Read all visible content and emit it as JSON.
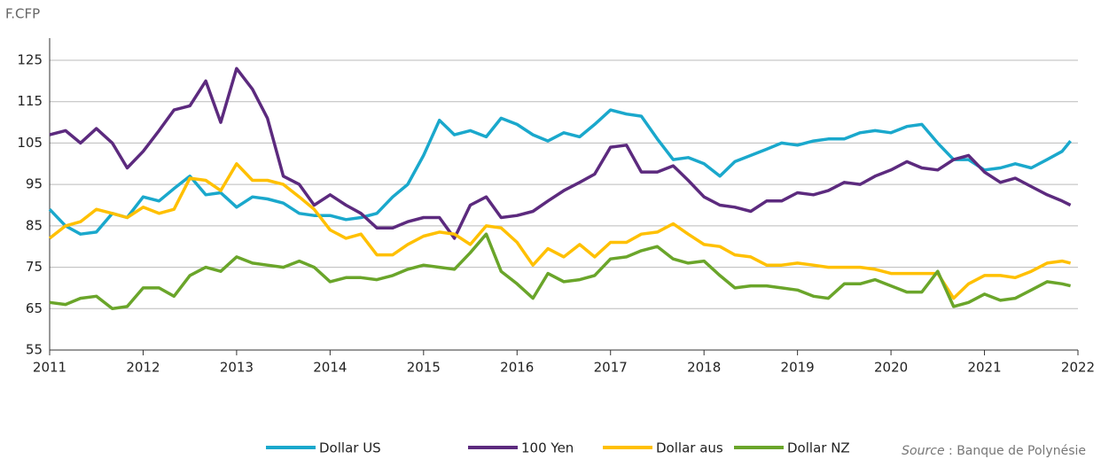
{
  "chart_data": {
    "type": "line",
    "y_label": "F.CFP",
    "x": [
      2011.0,
      2011.17,
      2011.33,
      2011.5,
      2011.67,
      2011.83,
      2012.0,
      2012.17,
      2012.33,
      2012.5,
      2012.67,
      2012.83,
      2013.0,
      2013.17,
      2013.33,
      2013.5,
      2013.67,
      2013.83,
      2014.0,
      2014.17,
      2014.33,
      2014.5,
      2014.67,
      2014.83,
      2015.0,
      2015.17,
      2015.33,
      2015.5,
      2015.67,
      2015.83,
      2016.0,
      2016.17,
      2016.33,
      2016.5,
      2016.67,
      2016.83,
      2017.0,
      2017.17,
      2017.33,
      2017.5,
      2017.67,
      2017.83,
      2018.0,
      2018.17,
      2018.33,
      2018.5,
      2018.67,
      2018.83,
      2019.0,
      2019.17,
      2019.33,
      2019.5,
      2019.67,
      2019.83,
      2020.0,
      2020.17,
      2020.33,
      2020.5,
      2020.67,
      2020.83,
      2021.0,
      2021.17,
      2021.33,
      2021.5,
      2021.67,
      2021.83,
      2021.92
    ],
    "series": [
      {
        "name": "Dollar US",
        "color": "#1aa8cc",
        "values": [
          89,
          85,
          83,
          83.5,
          88,
          87,
          92,
          91,
          94,
          97,
          92.5,
          93,
          89.5,
          92,
          91.5,
          90.5,
          88,
          87.5,
          87.5,
          86.5,
          87,
          88,
          92,
          95,
          102,
          110.5,
          107,
          108,
          106.5,
          111,
          109.5,
          107,
          105.5,
          107.5,
          106.5,
          109.5,
          113,
          112,
          111.5,
          106,
          101,
          101.5,
          100,
          97,
          100.5,
          102,
          103.5,
          105,
          104.5,
          105.5,
          106,
          106,
          107.5,
          108,
          107.5,
          109,
          109.5,
          105,
          101,
          101,
          98.5,
          99,
          100,
          99,
          101,
          103,
          105.5
        ]
      },
      {
        "name": "100 Yen",
        "color": "#5c2a7e",
        "values": [
          107,
          108,
          105,
          108.5,
          105,
          99,
          103,
          108,
          113,
          114,
          120,
          110,
          123,
          118,
          111,
          97,
          95,
          90,
          92.5,
          90,
          88,
          84.5,
          84.5,
          86,
          87,
          87,
          82,
          90,
          92,
          87,
          87.5,
          88.5,
          91,
          93.5,
          95.5,
          97.5,
          104,
          104.5,
          98,
          98,
          99.5,
          96,
          92,
          90,
          89.5,
          88.5,
          91,
          91,
          93,
          92.5,
          93.5,
          95.5,
          95,
          97,
          98.5,
          100.5,
          99,
          98.5,
          101,
          102,
          98,
          95.5,
          96.5,
          94.5,
          92.5,
          91,
          90
        ]
      },
      {
        "name": "Dollar aus",
        "color": "#ffc000",
        "values": [
          82,
          85,
          86,
          89,
          88,
          87,
          89.5,
          88,
          89,
          96.5,
          96,
          93.5,
          100,
          96,
          96,
          95,
          92,
          89,
          84,
          82,
          83,
          78,
          78,
          80.5,
          82.5,
          83.5,
          83,
          80.5,
          85,
          84.5,
          81,
          75.5,
          79.5,
          77.5,
          80.5,
          77.5,
          81,
          81,
          83,
          83.5,
          85.5,
          83,
          80.5,
          80,
          78,
          77.5,
          75.5,
          75.5,
          76,
          75.5,
          75,
          75,
          75,
          74.5,
          73.5,
          73.5,
          73.5,
          73.5,
          67.5,
          71,
          73,
          73,
          72.5,
          74,
          76,
          76.5,
          76
        ]
      },
      {
        "name": "Dollar NZ",
        "color": "#6aa52a",
        "values": [
          66.5,
          66,
          67.5,
          68,
          65,
          65.5,
          70,
          70,
          68,
          73,
          75,
          74,
          77.5,
          76,
          75.5,
          75,
          76.5,
          75,
          71.5,
          72.5,
          72.5,
          72,
          73,
          74.5,
          75.5,
          75,
          74.5,
          78.5,
          83,
          74,
          71,
          67.5,
          73.5,
          71.5,
          72,
          73,
          77,
          77.5,
          79,
          80,
          77,
          76,
          76.5,
          73,
          70,
          70.5,
          70.5,
          70,
          69.5,
          68,
          67.5,
          71,
          71,
          72,
          70.5,
          69,
          69,
          74,
          65.5,
          66.5,
          68.5,
          67,
          67.5,
          69.5,
          71.5,
          71,
          70.5
        ]
      }
    ],
    "xlim": [
      2011,
      2022
    ],
    "xticks": [
      2011,
      2012,
      2013,
      2014,
      2015,
      2016,
      2017,
      2018,
      2019,
      2020,
      2021,
      2022
    ],
    "ylim": [
      55,
      125
    ],
    "yticks": [
      55,
      65,
      75,
      85,
      95,
      105,
      115,
      125
    ],
    "grid": true,
    "legend": "bottom",
    "source": {
      "label": "Source",
      "text": " : Banque de Polynésie"
    }
  }
}
